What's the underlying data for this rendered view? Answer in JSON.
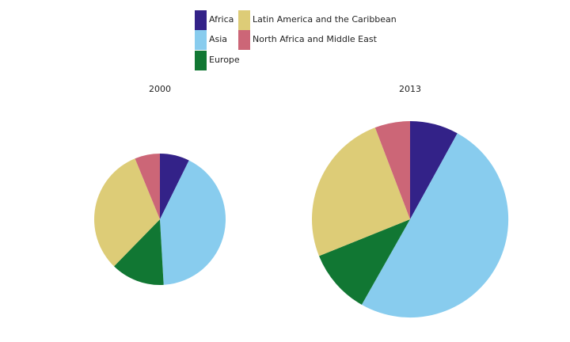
{
  "legend": {
    "items": [
      {
        "label": "Africa",
        "color": "#332288"
      },
      {
        "label": "Asia",
        "color": "#88ccee"
      },
      {
        "label": "Europe",
        "color": "#117733"
      },
      {
        "label": "Latin America and the Caribbean",
        "color": "#ddcc77"
      },
      {
        "label": "North Africa and Middle East",
        "color": "#cc6677"
      }
    ]
  },
  "chart_data": [
    {
      "type": "pie",
      "title": "2000",
      "labels": [
        "Africa",
        "Asia",
        "Europe",
        "Latin America and the Caribbean",
        "North Africa and Middle East"
      ],
      "values": [
        7.3,
        41.8,
        13.2,
        31.5,
        6.2
      ],
      "colors": [
        "#332288",
        "#88ccee",
        "#117733",
        "#ddcc77",
        "#cc6677"
      ],
      "start": "12 o'clock",
      "direction": "clockwise"
    },
    {
      "type": "pie",
      "title": "2013",
      "labels": [
        "Africa",
        "Asia",
        "Europe",
        "Latin America and the Caribbean",
        "North Africa and Middle East"
      ],
      "values": [
        8.0,
        50.2,
        10.7,
        25.3,
        5.8
      ],
      "colors": [
        "#332288",
        "#88ccee",
        "#117733",
        "#ddcc77",
        "#cc6677"
      ],
      "start": "12 o'clock",
      "direction": "clockwise"
    }
  ]
}
